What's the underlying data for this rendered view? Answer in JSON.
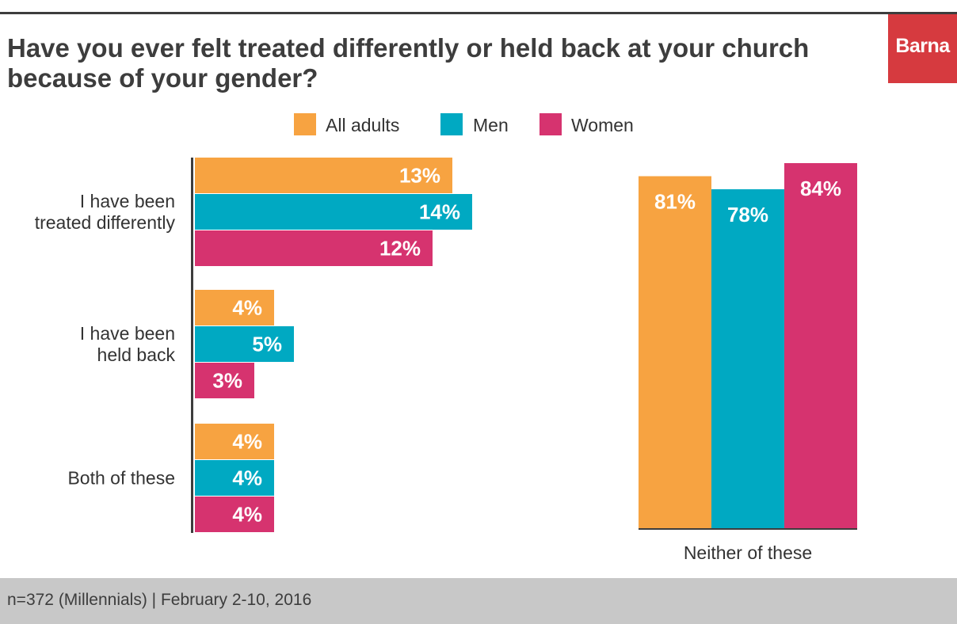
{
  "title": "Have you ever felt treated differently or held back at your church because of your gender?",
  "logo": "Barna",
  "footer": "n=372 (Millennials) | February 2-10, 2016",
  "colors": {
    "all_adults": "#f7a341",
    "men": "#00a9c2",
    "women": "#d6336f",
    "text": "#3d3d3d",
    "brand": "#d63a3f"
  },
  "chart_data": [
    {
      "type": "bar",
      "orientation": "horizontal",
      "categories": [
        "I have been treated differently",
        "I have been held back",
        "Both of these"
      ],
      "category_labels": [
        [
          "I have been",
          "treated differently"
        ],
        [
          "I have been",
          "held back"
        ],
        [
          "Both of these"
        ]
      ],
      "series": [
        {
          "name": "All adults",
          "values": [
            13,
            4,
            4
          ],
          "labels": [
            "13%",
            "4%",
            "4%"
          ]
        },
        {
          "name": "Men",
          "values": [
            14,
            5,
            4
          ],
          "labels": [
            "14%",
            "5%",
            "4%"
          ]
        },
        {
          "name": "Women",
          "values": [
            12,
            3,
            4
          ],
          "labels": [
            "12%",
            "3%",
            "4%"
          ]
        }
      ],
      "unit": "%",
      "legend": "top",
      "grid": false
    },
    {
      "type": "bar",
      "orientation": "vertical",
      "categories": [
        "Neither of these"
      ],
      "series": [
        {
          "name": "All adults",
          "values": [
            81
          ],
          "labels": [
            "81%"
          ]
        },
        {
          "name": "Men",
          "values": [
            78
          ],
          "labels": [
            "78%"
          ]
        },
        {
          "name": "Women",
          "values": [
            84
          ],
          "labels": [
            "84%"
          ]
        }
      ],
      "unit": "%",
      "grid": false
    }
  ]
}
